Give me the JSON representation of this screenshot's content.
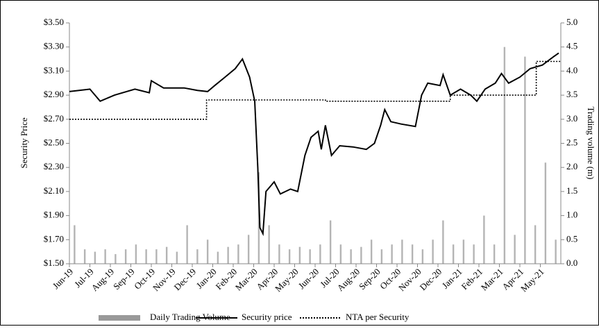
{
  "chart_data": {
    "type": "line",
    "ylabel": "Security Price",
    "y2label": "Trading volume (m)",
    "xlim": [
      0,
      24
    ],
    "ylim": [
      1.5,
      3.5
    ],
    "y2lim": [
      0,
      5
    ],
    "xticks": [
      {
        "value": 0,
        "label": "Jun-19"
      },
      {
        "value": 1,
        "label": "Jul-19"
      },
      {
        "value": 2,
        "label": "Aug-19"
      },
      {
        "value": 3,
        "label": "Sep-19"
      },
      {
        "value": 4,
        "label": "Oct-19"
      },
      {
        "value": 5,
        "label": "Nov-19"
      },
      {
        "value": 6,
        "label": "Dec-19"
      },
      {
        "value": 7,
        "label": "Jan-20"
      },
      {
        "value": 8,
        "label": "Feb-20"
      },
      {
        "value": 9,
        "label": "Mar-20"
      },
      {
        "value": 10,
        "label": "Apr-20"
      },
      {
        "value": 11,
        "label": "May-20"
      },
      {
        "value": 12,
        "label": "Jun-20"
      },
      {
        "value": 13,
        "label": "Jul-20"
      },
      {
        "value": 14,
        "label": "Aug-20"
      },
      {
        "value": 15,
        "label": "Sep-20"
      },
      {
        "value": 16,
        "label": "Oct-20"
      },
      {
        "value": 17,
        "label": "Nov-20"
      },
      {
        "value": 18,
        "label": "Dec-20"
      },
      {
        "value": 19,
        "label": "Jan-21"
      },
      {
        "value": 20,
        "label": "Feb-21"
      },
      {
        "value": 21,
        "label": "Mar-21"
      },
      {
        "value": 22,
        "label": "Apr-21"
      },
      {
        "value": 23,
        "label": "May-21"
      }
    ],
    "yticks": [
      {
        "value": 1.5,
        "label": "$1.50"
      },
      {
        "value": 1.7,
        "label": "$1.70"
      },
      {
        "value": 1.9,
        "label": "$1.90"
      },
      {
        "value": 2.1,
        "label": "$2.10"
      },
      {
        "value": 2.3,
        "label": "$2.30"
      },
      {
        "value": 2.5,
        "label": "$2.50"
      },
      {
        "value": 2.7,
        "label": "$2.70"
      },
      {
        "value": 2.9,
        "label": "$2.90"
      },
      {
        "value": 3.1,
        "label": "$3.10"
      },
      {
        "value": 3.3,
        "label": "$3.30"
      },
      {
        "value": 3.5,
        "label": "$3.50"
      }
    ],
    "y2ticks": [
      {
        "value": 0,
        "label": "0.0"
      },
      {
        "value": 0.5,
        "label": "0.5"
      },
      {
        "value": 1,
        "label": "1.0"
      },
      {
        "value": 1.5,
        "label": "1.5"
      },
      {
        "value": 2,
        "label": "2.0"
      },
      {
        "value": 2.5,
        "label": "2.5"
      },
      {
        "value": 3,
        "label": "3.0"
      },
      {
        "value": 3.5,
        "label": "3.5"
      },
      {
        "value": 4,
        "label": "4.0"
      },
      {
        "value": 4.5,
        "label": "4.5"
      },
      {
        "value": 5,
        "label": "5.0"
      }
    ],
    "legend": "bottom",
    "series": [
      {
        "name": "Daily Trading Volume",
        "color": "#b4b4b4",
        "kind": "bar",
        "axis": "y2",
        "x": [
          0.25,
          0.75,
          1.25,
          1.75,
          2.25,
          2.75,
          3.25,
          3.75,
          4.25,
          4.75,
          5.25,
          5.75,
          6.25,
          6.75,
          7.25,
          7.75,
          8.25,
          8.75,
          9.25,
          9.75,
          10.25,
          10.75,
          11.25,
          11.75,
          12.25,
          12.75,
          13.25,
          13.75,
          14.25,
          14.75,
          15.25,
          15.75,
          16.25,
          16.75,
          17.25,
          17.75,
          18.25,
          18.75,
          19.25,
          19.75,
          20.25,
          20.75,
          21.25,
          21.75,
          22.25,
          22.75,
          23.25,
          23.75
        ],
        "values": [
          0.8,
          0.3,
          0.25,
          0.3,
          0.2,
          0.3,
          0.4,
          0.3,
          0.3,
          0.35,
          0.25,
          0.8,
          0.3,
          0.5,
          0.25,
          0.35,
          0.4,
          0.6,
          1.9,
          0.8,
          0.4,
          0.3,
          0.35,
          0.3,
          0.4,
          0.9,
          0.4,
          0.3,
          0.35,
          0.5,
          0.3,
          0.4,
          0.5,
          0.4,
          0.3,
          0.5,
          0.9,
          0.4,
          0.5,
          0.4,
          1.0,
          0.4,
          4.5,
          0.6,
          4.3,
          0.8,
          2.1,
          0.5
        ]
      },
      {
        "name": "Security price",
        "color": "#000000",
        "kind": "line",
        "x": [
          0,
          1,
          1.5,
          2.2,
          3.2,
          3.9,
          4,
          4.6,
          5.6,
          6.25,
          6.75,
          7.1,
          7.6,
          8.1,
          8.45,
          8.8,
          9.05,
          9.2,
          9.3,
          9.45,
          9.6,
          10,
          10.3,
          10.8,
          11.15,
          11.5,
          11.8,
          12.15,
          12.3,
          12.5,
          12.8,
          13.2,
          13.85,
          14.5,
          14.9,
          15.2,
          15.4,
          15.7,
          16.2,
          16.9,
          17.2,
          17.5,
          18.1,
          18.25,
          18.6,
          19.1,
          19.6,
          19.9,
          20.3,
          20.8,
          21.1,
          21.45,
          22,
          22.5,
          23.1,
          23.65,
          23.9
        ],
        "values": [
          2.93,
          2.95,
          2.85,
          2.9,
          2.95,
          2.92,
          3.02,
          2.96,
          2.96,
          2.94,
          2.93,
          2.98,
          3.05,
          3.12,
          3.2,
          3.05,
          2.85,
          2.3,
          1.8,
          1.75,
          2.1,
          2.18,
          2.08,
          2.12,
          2.1,
          2.4,
          2.55,
          2.6,
          2.45,
          2.65,
          2.4,
          2.48,
          2.47,
          2.45,
          2.5,
          2.65,
          2.78,
          2.68,
          2.66,
          2.64,
          2.9,
          3.0,
          2.98,
          3.07,
          2.9,
          2.95,
          2.9,
          2.85,
          2.95,
          3.0,
          3.08,
          3.0,
          3.05,
          3.12,
          3.15,
          3.22,
          3.25
        ]
      },
      {
        "name": "NTA per Security",
        "color": "#000000",
        "kind": "line",
        "dash": "dotted",
        "x": [
          0,
          6.7,
          6.7,
          12.5,
          12.5,
          18.6,
          18.6,
          22.8,
          22.8,
          24
        ],
        "values": [
          2.7,
          2.7,
          2.86,
          2.86,
          2.85,
          2.85,
          2.9,
          2.9,
          3.18,
          3.18
        ]
      }
    ]
  }
}
